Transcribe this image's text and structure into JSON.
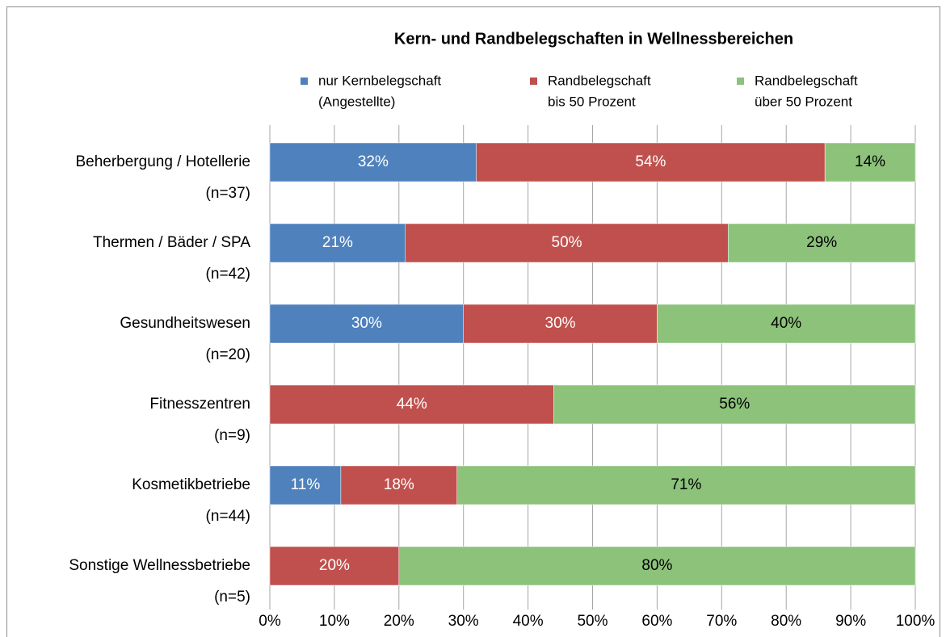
{
  "chart_data": {
    "type": "stacked-barh",
    "title": "Kern- und Randbelegschaften in Wellnessbereichen",
    "categories": [
      [
        "Beherbergung / Hotellerie",
        "(n=37)"
      ],
      [
        "Thermen / Bäder / SPA",
        "(n=42)"
      ],
      [
        "Gesundheitswesen",
        "(n=20)"
      ],
      [
        "Fitnesszentren",
        "(n=9)"
      ],
      [
        "Kosmetikbetriebe",
        "(n=44)"
      ],
      [
        "Sonstige Wellnessbetriebe",
        "(n=5)"
      ]
    ],
    "series": [
      {
        "name": [
          "nur Kernbelegschaft",
          "(Angestellte)"
        ],
        "color": "#4f81bd",
        "label_color": "#ffffff",
        "values": [
          32,
          21,
          30,
          null,
          11,
          null
        ],
        "value_labels": [
          "32%",
          "21%",
          "30%",
          null,
          "11%",
          null
        ]
      },
      {
        "name": [
          "Randbelegschaft",
          "bis 50 Prozent"
        ],
        "color": "#c0504d",
        "label_color": "#ffffff",
        "values": [
          54,
          50,
          30,
          44,
          18,
          20
        ],
        "value_labels": [
          "54%",
          "50%",
          "30%",
          "44%",
          "18%",
          "20%"
        ]
      },
      {
        "name": [
          "Randbelegschaft",
          "über 50 Prozent"
        ],
        "color": "#8cc27a",
        "label_color": "#000000",
        "values": [
          14,
          29,
          40,
          56,
          71,
          80
        ],
        "value_labels": [
          "14%",
          "29%",
          "40%",
          "56%",
          "71%",
          "80%"
        ]
      }
    ],
    "xlim": [
      0,
      100
    ],
    "xticks": [
      {
        "value": 0,
        "label": "0%"
      },
      {
        "value": 10,
        "label": "10%"
      },
      {
        "value": 20,
        "label": "20%"
      },
      {
        "value": 30,
        "label": "30%"
      },
      {
        "value": 40,
        "label": "40%"
      },
      {
        "value": 50,
        "label": "50%"
      },
      {
        "value": 60,
        "label": "60%"
      },
      {
        "value": 70,
        "label": "70%"
      },
      {
        "value": 80,
        "label": "80%"
      },
      {
        "value": 90,
        "label": "90%"
      },
      {
        "value": 100,
        "label": "100%"
      }
    ],
    "grid": true
  }
}
